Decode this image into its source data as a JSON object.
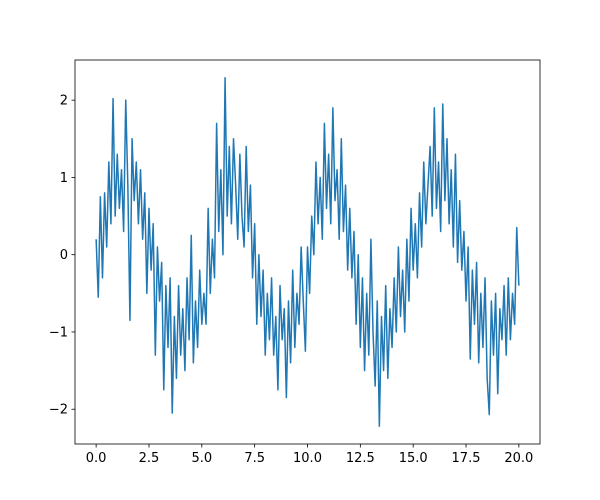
{
  "chart_data": {
    "type": "line",
    "x": [
      0,
      0.1,
      0.2,
      0.3,
      0.4,
      0.5,
      0.6,
      0.7,
      0.8,
      0.9,
      1,
      1.1,
      1.2,
      1.3,
      1.4,
      1.5,
      1.6,
      1.7,
      1.8,
      1.9,
      2,
      2.1,
      2.2,
      2.3,
      2.4,
      2.5,
      2.6,
      2.7,
      2.8,
      2.9,
      3,
      3.1,
      3.2,
      3.3,
      3.4,
      3.5,
      3.6,
      3.7,
      3.8,
      3.9,
      4,
      4.1,
      4.2,
      4.3,
      4.4,
      4.5,
      4.6,
      4.7,
      4.8,
      4.9,
      5,
      5.1,
      5.2,
      5.3,
      5.4,
      5.5,
      5.6,
      5.7,
      5.8,
      5.9,
      6,
      6.1,
      6.2,
      6.3,
      6.4,
      6.5,
      6.6,
      6.7,
      6.8,
      6.9,
      7,
      7.1,
      7.2,
      7.3,
      7.4,
      7.5,
      7.6,
      7.7,
      7.8,
      7.9,
      8,
      8.1,
      8.2,
      8.3,
      8.4,
      8.5,
      8.6,
      8.7,
      8.8,
      8.9,
      9,
      9.1,
      9.2,
      9.3,
      9.4,
      9.5,
      9.6,
      9.7,
      9.8,
      9.9,
      10,
      10.1,
      10.2,
      10.3,
      10.4,
      10.5,
      10.6,
      10.7,
      10.8,
      10.9,
      11,
      11.1,
      11.2,
      11.3,
      11.4,
      11.5,
      11.6,
      11.7,
      11.8,
      11.9,
      12,
      12.1,
      12.2,
      12.3,
      12.4,
      12.5,
      12.6,
      12.7,
      12.8,
      12.9,
      13,
      13.1,
      13.2,
      13.3,
      13.4,
      13.5,
      13.6,
      13.7,
      13.8,
      13.9,
      14,
      14.1,
      14.2,
      14.3,
      14.4,
      14.5,
      14.6,
      14.7,
      14.8,
      14.9,
      15,
      15.1,
      15.2,
      15.3,
      15.4,
      15.5,
      15.6,
      15.7,
      15.8,
      15.9,
      16,
      16.1,
      16.2,
      16.3,
      16.4,
      16.5,
      16.6,
      16.7,
      16.8,
      16.9,
      17,
      17.1,
      17.2,
      17.3,
      17.4,
      17.5,
      17.6,
      17.7,
      17.8,
      17.9,
      18,
      18.1,
      18.2,
      18.3,
      18.4,
      18.5,
      18.6,
      18.7,
      18.8,
      18.9,
      19,
      19.1,
      19.2,
      19.3,
      19.4,
      19.5,
      19.6,
      19.7,
      19.8,
      19.9,
      20
    ],
    "series": [
      {
        "color": "#1f77b4",
        "values": [
          0.2,
          -0.55,
          0.75,
          -0.3,
          0.8,
          0.1,
          1.2,
          0.4,
          2.02,
          0.5,
          1.3,
          0.6,
          1.1,
          0.3,
          2.0,
          0.9,
          -0.85,
          1.5,
          0.7,
          1.2,
          0.4,
          1.1,
          0.2,
          0.8,
          -0.5,
          0.6,
          -0.2,
          0.4,
          -1.3,
          0.1,
          -0.6,
          -0.1,
          -1.75,
          -0.4,
          -1.2,
          -0.3,
          -2.05,
          -0.8,
          -1.6,
          -0.4,
          -1.3,
          -0.7,
          -1.5,
          -0.3,
          -1.1,
          0.25,
          -1.4,
          -0.6,
          -1.2,
          -0.2,
          -0.9,
          -0.5,
          -0.9,
          0.6,
          -0.5,
          0.2,
          -0.3,
          1.7,
          0.3,
          1.1,
          0.0,
          2.29,
          0.5,
          1.4,
          0.4,
          1.5,
          0.9,
          0.2,
          1.3,
          0.5,
          0.1,
          1.4,
          0.3,
          0.9,
          -0.3,
          0.4,
          -0.9,
          0.0,
          -0.8,
          -0.2,
          -1.3,
          -0.5,
          -1.1,
          -0.3,
          -1.3,
          -0.8,
          -1.75,
          -0.4,
          -1.1,
          -0.7,
          -1.85,
          -0.6,
          -1.4,
          -0.2,
          -1.2,
          -0.5,
          -0.9,
          0.1,
          -0.6,
          -1.25,
          0.1,
          -0.5,
          0.5,
          0.0,
          1.2,
          0.4,
          1.0,
          0.2,
          1.7,
          0.6,
          1.3,
          0.4,
          1.9,
          0.7,
          1.1,
          0.2,
          1.5,
          0.3,
          0.9,
          -0.2,
          0.6,
          -0.3,
          0.3,
          -0.9,
          0.0,
          -1.2,
          -0.3,
          -1.5,
          -0.5,
          -1.3,
          0.2,
          -1.0,
          -1.7,
          -0.6,
          -2.22,
          -0.8,
          -1.5,
          -0.4,
          -1.6,
          -0.7,
          -1.2,
          -0.3,
          -1.0,
          0.1,
          -0.8,
          -0.2,
          -1.0,
          0.2,
          -0.6,
          0.6,
          -0.2,
          0.4,
          -0.3,
          0.8,
          0.1,
          1.2,
          0.4,
          0.9,
          1.4,
          0.5,
          1.9,
          0.6,
          1.2,
          0.3,
          1.95,
          0.7,
          1.5,
          0.4,
          1.1,
          0.1,
          1.3,
          -0.1,
          0.7,
          -0.2,
          0.3,
          -0.6,
          0.1,
          -1.35,
          -0.2,
          -0.9,
          -0.1,
          -1.4,
          -0.5,
          -1.2,
          -0.3,
          -1.6,
          -2.07,
          -0.6,
          -1.3,
          -0.5,
          -1.8,
          -0.7,
          -1.1,
          -0.4,
          -1.3,
          -0.3,
          -1.1,
          -0.5,
          -0.9,
          0.35,
          -0.4
        ]
      }
    ],
    "xlim": [
      -1,
      21
    ],
    "ylim": [
      -2.45,
      2.52
    ],
    "xticks": [
      {
        "value": 0,
        "label": "0.0"
      },
      2.5,
      {
        "value": 5,
        "label": "5.0"
      },
      7.5,
      {
        "value": 10,
        "label": "10.0"
      },
      12.5,
      {
        "value": 15,
        "label": "15.0"
      },
      17.5,
      {
        "value": 20,
        "label": "20.0"
      }
    ],
    "yticks": [
      {
        "value": -2,
        "label": "−2"
      },
      {
        "value": -1,
        "label": "−1"
      },
      0,
      1,
      2
    ]
  }
}
